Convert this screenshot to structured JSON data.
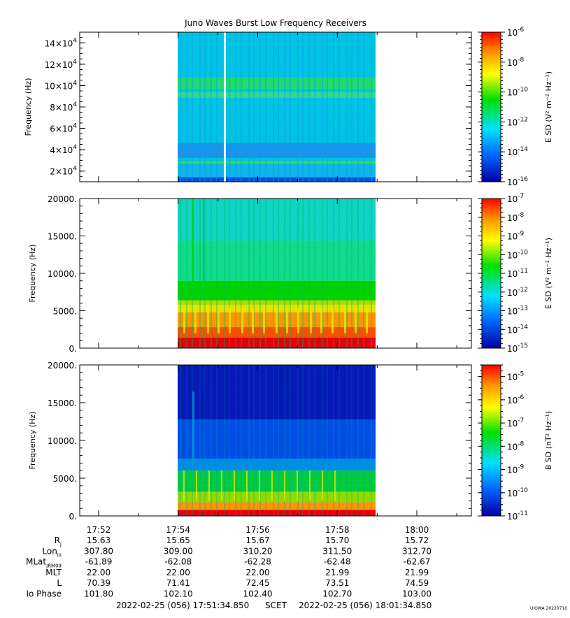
{
  "title": "Juno Waves Burst Low Frequency Receivers",
  "footer": {
    "start": "2022-02-25 (056) 17:51:34.850",
    "scet": "SCET",
    "end": "2022-02-25 (056) 18:01:34.850",
    "stamp": "UIOWA 20220710"
  },
  "colors": {
    "red": "#e8000b",
    "orange": "#ff9a00",
    "yellow": "#e8e800",
    "green": "#00d600",
    "cyan": "#00c8e8",
    "blue": "#0050e8",
    "navy": "#0000a0"
  },
  "chart_data": [
    {
      "type": "heatmap",
      "ylabel": "Frequency (Hz)",
      "yticks": [
        {
          "value": 20000,
          "base": "2×10",
          "exp": "4"
        },
        {
          "value": 40000,
          "base": "4×10",
          "exp": "4"
        },
        {
          "value": 60000,
          "base": "6×10",
          "exp": "4"
        },
        {
          "value": 80000,
          "base": "8×10",
          "exp": "4"
        },
        {
          "value": 100000,
          "base": "10×10",
          "exp": "4"
        },
        {
          "value": 120000,
          "base": "12×10",
          "exp": "4"
        },
        {
          "value": 140000,
          "base": "14×10",
          "exp": "4"
        }
      ],
      "ylim": [
        10000,
        150000
      ],
      "colorbar": {
        "label": "E SD (V² m⁻² Hz⁻¹)",
        "ticks": [
          {
            "base": "10",
            "exp": "-6"
          },
          {
            "base": "10",
            "exp": "-8"
          },
          {
            "base": "10",
            "exp": "-10"
          },
          {
            "base": "10",
            "exp": "-12"
          },
          {
            "base": "10",
            "exp": "-14"
          },
          {
            "base": "10",
            "exp": "-16"
          }
        ],
        "range": [
          -16,
          -6
        ]
      }
    },
    {
      "type": "heatmap",
      "ylabel": "Frequency (Hz)",
      "yticks": [
        {
          "value": 0,
          "label": "0."
        },
        {
          "value": 5000,
          "label": "5000."
        },
        {
          "value": 10000,
          "label": "10000."
        },
        {
          "value": 15000,
          "label": "15000."
        },
        {
          "value": 20000,
          "label": "20000."
        }
      ],
      "ylim": [
        0,
        20000
      ],
      "colorbar": {
        "label": "E SD (V² m⁻² Hz⁻¹)",
        "ticks": [
          {
            "base": "10",
            "exp": "-7"
          },
          {
            "base": "10",
            "exp": "-8"
          },
          {
            "base": "10",
            "exp": "-9"
          },
          {
            "base": "10",
            "exp": "-10"
          },
          {
            "base": "10",
            "exp": "-11"
          },
          {
            "base": "10",
            "exp": "-12"
          },
          {
            "base": "10",
            "exp": "-13"
          },
          {
            "base": "10",
            "exp": "-14"
          },
          {
            "base": "10",
            "exp": "-15"
          }
        ],
        "range": [
          -15,
          -7
        ]
      }
    },
    {
      "type": "heatmap",
      "ylabel": "Frequency (Hz)",
      "yticks": [
        {
          "value": 0,
          "label": "0."
        },
        {
          "value": 5000,
          "label": "5000."
        },
        {
          "value": 10000,
          "label": "10000."
        },
        {
          "value": 15000,
          "label": "15000."
        },
        {
          "value": 20000,
          "label": "20000."
        }
      ],
      "ylim": [
        0,
        20000
      ],
      "colorbar": {
        "label": "B SD (nT² Hz⁻¹)",
        "ticks": [
          {
            "base": "10",
            "exp": "-5"
          },
          {
            "base": "10",
            "exp": "-6"
          },
          {
            "base": "10",
            "exp": "-7"
          },
          {
            "base": "10",
            "exp": "-8"
          },
          {
            "base": "10",
            "exp": "-9"
          },
          {
            "base": "10",
            "exp": "-10"
          },
          {
            "base": "10",
            "exp": "-11"
          }
        ],
        "range": [
          -11,
          -4.5
        ]
      }
    }
  ],
  "xaxis": {
    "ticks": [
      "17:52",
      "17:54",
      "17:56",
      "17:58",
      "18:00"
    ],
    "rows": [
      {
        "label": "R",
        "sub": "J",
        "values": [
          "15.63",
          "15.65",
          "15.67",
          "15.70",
          "15.72"
        ]
      },
      {
        "label": "Lon",
        "sub": "III",
        "values": [
          "307.80",
          "309.00",
          "310.20",
          "311.50",
          "312.70"
        ]
      },
      {
        "label": "MLat",
        "sub": "JRM09",
        "values": [
          "-61.89",
          "-62.08",
          "-62.28",
          "-62.48",
          "-62.67"
        ]
      },
      {
        "label": "MLT",
        "sub": "",
        "values": [
          "22.00",
          "22.00",
          "22.00",
          "21.99",
          "21.99"
        ]
      },
      {
        "label": "L",
        "sub": "",
        "values": [
          "70.39",
          "71.41",
          "72.45",
          "73.51",
          "74.59"
        ]
      },
      {
        "label": "Io Phase",
        "sub": "",
        "values": [
          "101.80",
          "102.10",
          "102.40",
          "102.70",
          "103.00"
        ]
      }
    ]
  }
}
